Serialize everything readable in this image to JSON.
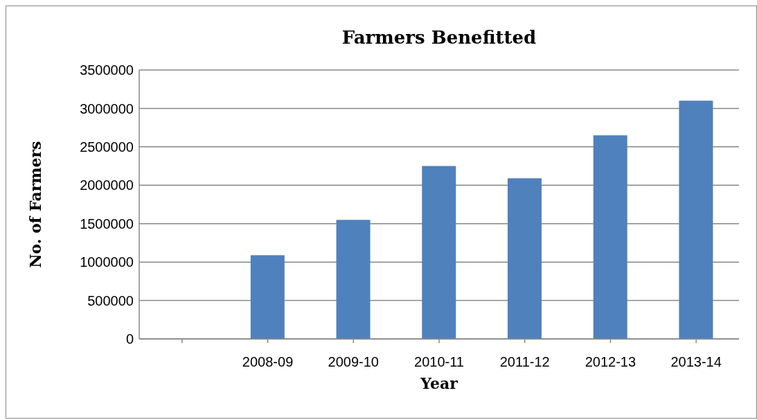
{
  "chart_data": {
    "type": "bar",
    "title": "Farmers Benefitted",
    "xlabel": "Year",
    "ylabel": "No. of Farmers",
    "categories": [
      null,
      "2008-09",
      "2009-10",
      "2010-11",
      "2011-12",
      "2012-13",
      "2013-14"
    ],
    "values": [
      null,
      1090000,
      1550000,
      2250000,
      2090000,
      2650000,
      3100000
    ],
    "color": "#4f81bd",
    "ylim": [
      0,
      3500000
    ],
    "yticks": [
      0,
      500000,
      1000000,
      1500000,
      2000000,
      2500000,
      3000000,
      3500000
    ],
    "grid": "y",
    "legend": false
  }
}
